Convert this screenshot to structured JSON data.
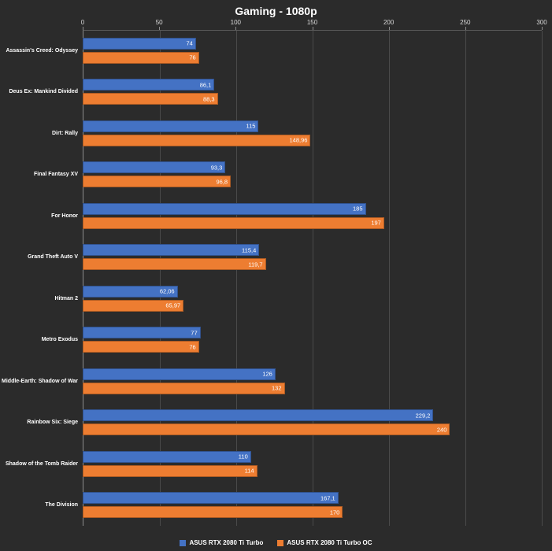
{
  "chart_data": {
    "type": "bar",
    "orientation": "horizontal",
    "title": "Gaming - 1080p",
    "xlabel": "",
    "ylabel": "",
    "xlim": [
      0,
      300
    ],
    "ticks": [
      0,
      50,
      100,
      150,
      200,
      250,
      300
    ],
    "grid": true,
    "legend_position": "bottom",
    "background_color": "#2b2b2b",
    "categories": [
      "Assassin's Creed: Odyssey",
      "Deus Ex: Mankind Divided",
      "Dirt: Rally",
      "Final Fantasy XV",
      "For Honor",
      "Grand Theft Auto V",
      "Hitman 2",
      "Metro Exodus",
      "Middle-Earth: Shadow of War",
      "Rainbow Six: Siege",
      "Shadow of the Tomb Raider",
      "The Division"
    ],
    "series": [
      {
        "name": "ASUS RTX 2080 Ti Turbo",
        "color": "#4472c4",
        "values": [
          74,
          86.1,
          115,
          93.3,
          185,
          115.4,
          62.06,
          77,
          126,
          229.2,
          110,
          167.1
        ],
        "labels": [
          "74",
          "86,1",
          "115",
          "93,3",
          "185",
          "115,4",
          "62,06",
          "77",
          "126",
          "229,2",
          "110",
          "167,1"
        ]
      },
      {
        "name": "ASUS RTX 2080 Ti Turbo OC",
        "color": "#ed7d31",
        "values": [
          76,
          88.3,
          148.96,
          96.8,
          197,
          119.7,
          65.97,
          76,
          132,
          240,
          114,
          170
        ],
        "labels": [
          "76",
          "88,3",
          "148,96",
          "96,8",
          "197",
          "119,7",
          "65,97",
          "76",
          "132",
          "240",
          "114",
          "170"
        ]
      }
    ]
  }
}
